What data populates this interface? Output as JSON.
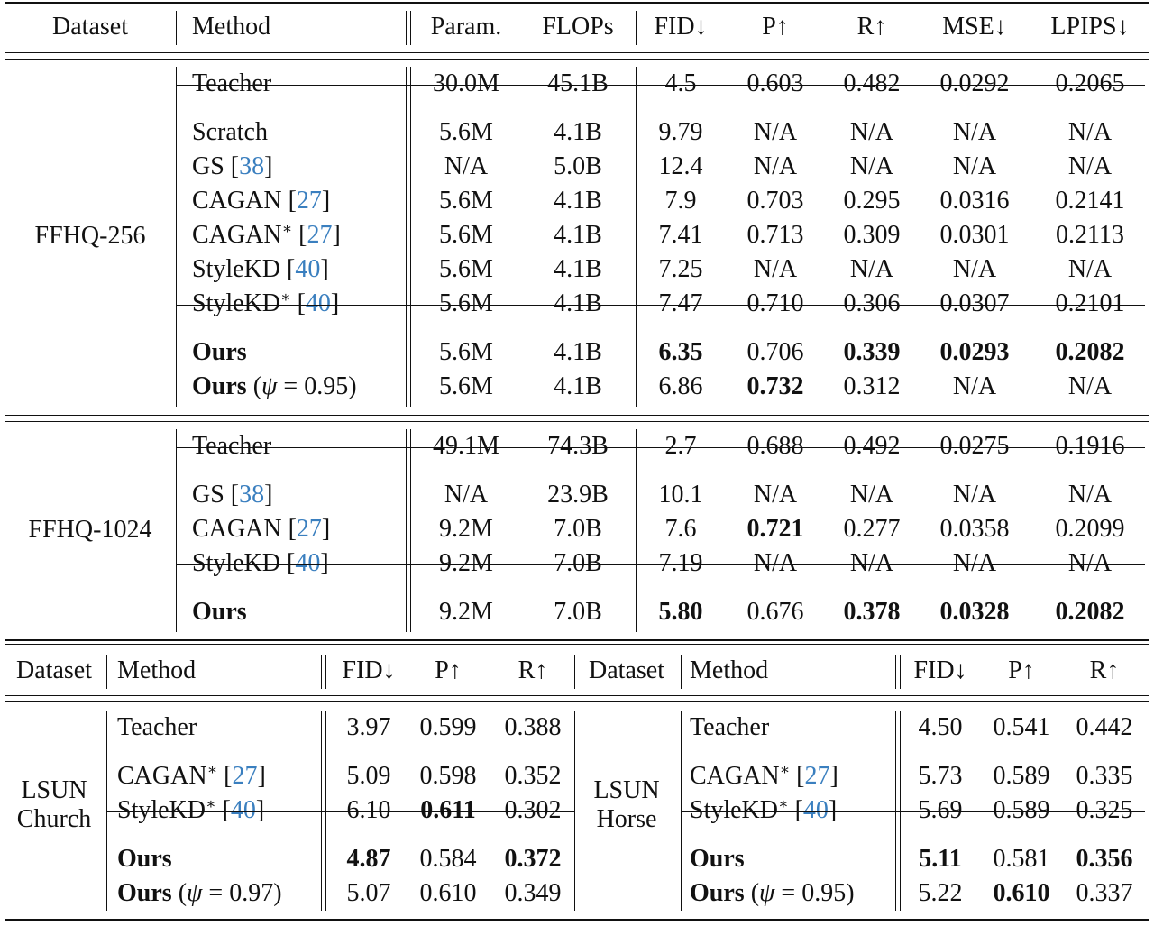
{
  "top_table": {
    "headers": [
      "Dataset",
      "Method",
      "Param.",
      "FLOPs",
      "FID↓",
      "P↑",
      "R↑",
      "MSE↓",
      "LPIPS↓"
    ],
    "groups": [
      {
        "dataset": "FFHQ-256",
        "blocks": [
          [
            {
              "method": "Teacher",
              "cite": "",
              "star": false,
              "psi": "",
              "bold_method": false,
              "vals": [
                "30.0M",
                "45.1B",
                "4.5",
                "0.603",
                "0.482",
                "0.0292",
                "0.2065"
              ],
              "bold": []
            }
          ],
          [
            {
              "method": "Scratch",
              "cite": "",
              "star": false,
              "psi": "",
              "bold_method": false,
              "vals": [
                "5.6M",
                "4.1B",
                "9.79",
                "N/A",
                "N/A",
                "N/A",
                "N/A"
              ],
              "bold": []
            },
            {
              "method": "GS",
              "cite": "38",
              "star": false,
              "psi": "",
              "bold_method": false,
              "vals": [
                "N/A",
                "5.0B",
                "12.4",
                "N/A",
                "N/A",
                "N/A",
                "N/A"
              ],
              "bold": []
            },
            {
              "method": "CAGAN",
              "cite": "27",
              "star": false,
              "psi": "",
              "bold_method": false,
              "vals": [
                "5.6M",
                "4.1B",
                "7.9",
                "0.703",
                "0.295",
                "0.0316",
                "0.2141"
              ],
              "bold": []
            },
            {
              "method": "CAGAN",
              "cite": "27",
              "star": true,
              "psi": "",
              "bold_method": false,
              "vals": [
                "5.6M",
                "4.1B",
                "7.41",
                "0.713",
                "0.309",
                "0.0301",
                "0.2113"
              ],
              "bold": []
            },
            {
              "method": "StyleKD",
              "cite": "40",
              "star": false,
              "psi": "",
              "bold_method": false,
              "vals": [
                "5.6M",
                "4.1B",
                "7.25",
                "N/A",
                "N/A",
                "N/A",
                "N/A"
              ],
              "bold": []
            },
            {
              "method": "StyleKD",
              "cite": "40",
              "star": true,
              "psi": "",
              "bold_method": false,
              "vals": [
                "5.6M",
                "4.1B",
                "7.47",
                "0.710",
                "0.306",
                "0.0307",
                "0.2101"
              ],
              "bold": []
            }
          ],
          [
            {
              "method": "Ours",
              "cite": "",
              "star": false,
              "psi": "",
              "bold_method": true,
              "vals": [
                "5.6M",
                "4.1B",
                "6.35",
                "0.706",
                "0.339",
                "0.0293",
                "0.2082"
              ],
              "bold": [
                2,
                4,
                5,
                6
              ]
            },
            {
              "method": "Ours",
              "cite": "",
              "star": false,
              "psi": "0.95",
              "bold_method": true,
              "vals": [
                "5.6M",
                "4.1B",
                "6.86",
                "0.732",
                "0.312",
                "N/A",
                "N/A"
              ],
              "bold": [
                3
              ]
            }
          ]
        ]
      },
      {
        "dataset": "FFHQ-1024",
        "blocks": [
          [
            {
              "method": "Teacher",
              "cite": "",
              "star": false,
              "psi": "",
              "bold_method": false,
              "vals": [
                "49.1M",
                "74.3B",
                "2.7",
                "0.688",
                "0.492",
                "0.0275",
                "0.1916"
              ],
              "bold": []
            }
          ],
          [
            {
              "method": "GS",
              "cite": "38",
              "star": false,
              "psi": "",
              "bold_method": false,
              "vals": [
                "N/A",
                "23.9B",
                "10.1",
                "N/A",
                "N/A",
                "N/A",
                "N/A"
              ],
              "bold": []
            },
            {
              "method": "CAGAN",
              "cite": "27",
              "star": false,
              "psi": "",
              "bold_method": false,
              "vals": [
                "9.2M",
                "7.0B",
                "7.6",
                "0.721",
                "0.277",
                "0.0358",
                "0.2099"
              ],
              "bold": [
                3
              ]
            },
            {
              "method": "StyleKD",
              "cite": "40",
              "star": false,
              "psi": "",
              "bold_method": false,
              "vals": [
                "9.2M",
                "7.0B",
                "7.19",
                "N/A",
                "N/A",
                "N/A",
                "N/A"
              ],
              "bold": []
            }
          ],
          [
            {
              "method": "Ours",
              "cite": "",
              "star": false,
              "psi": "",
              "bold_method": true,
              "vals": [
                "9.2M",
                "7.0B",
                "5.80",
                "0.676",
                "0.378",
                "0.0328",
                "0.2082"
              ],
              "bold": [
                2,
                4,
                5,
                6
              ]
            }
          ]
        ]
      }
    ]
  },
  "bottom_table": {
    "headers": [
      "Dataset",
      "Method",
      "FID↓",
      "P↑",
      "R↑"
    ],
    "halves": [
      {
        "dataset_line1": "LSUN",
        "dataset_line2": "Church",
        "blocks": [
          [
            {
              "method": "Teacher",
              "cite": "",
              "star": false,
              "psi": "",
              "bold_method": false,
              "vals": [
                "3.97",
                "0.599",
                "0.388"
              ],
              "bold": []
            }
          ],
          [
            {
              "method": "CAGAN",
              "cite": "27",
              "star": true,
              "psi": "",
              "bold_method": false,
              "vals": [
                "5.09",
                "0.598",
                "0.352"
              ],
              "bold": []
            },
            {
              "method": "StyleKD",
              "cite": "40",
              "star": true,
              "psi": "",
              "bold_method": false,
              "vals": [
                "6.10",
                "0.611",
                "0.302"
              ],
              "bold": [
                1
              ]
            }
          ],
          [
            {
              "method": "Ours",
              "cite": "",
              "star": false,
              "psi": "",
              "bold_method": true,
              "vals": [
                "4.87",
                "0.584",
                "0.372"
              ],
              "bold": [
                0,
                2
              ]
            },
            {
              "method": "Ours",
              "cite": "",
              "star": false,
              "psi": "0.97",
              "bold_method": true,
              "vals": [
                "5.07",
                "0.610",
                "0.349"
              ],
              "bold": []
            }
          ]
        ]
      },
      {
        "dataset_line1": "LSUN",
        "dataset_line2": "Horse",
        "blocks": [
          [
            {
              "method": "Teacher",
              "cite": "",
              "star": false,
              "psi": "",
              "bold_method": false,
              "vals": [
                "4.50",
                "0.541",
                "0.442"
              ],
              "bold": []
            }
          ],
          [
            {
              "method": "CAGAN",
              "cite": "27",
              "star": true,
              "psi": "",
              "bold_method": false,
              "vals": [
                "5.73",
                "0.589",
                "0.335"
              ],
              "bold": []
            },
            {
              "method": "StyleKD",
              "cite": "40",
              "star": true,
              "psi": "",
              "bold_method": false,
              "vals": [
                "5.69",
                "0.589",
                "0.325"
              ],
              "bold": []
            }
          ],
          [
            {
              "method": "Ours",
              "cite": "",
              "star": false,
              "psi": "",
              "bold_method": true,
              "vals": [
                "5.11",
                "0.581",
                "0.356"
              ],
              "bold": [
                0,
                2
              ]
            },
            {
              "method": "Ours",
              "cite": "",
              "star": false,
              "psi": "0.95",
              "bold_method": true,
              "vals": [
                "5.22",
                "0.610",
                "0.337"
              ],
              "bold": [
                1
              ]
            }
          ]
        ]
      }
    ]
  }
}
